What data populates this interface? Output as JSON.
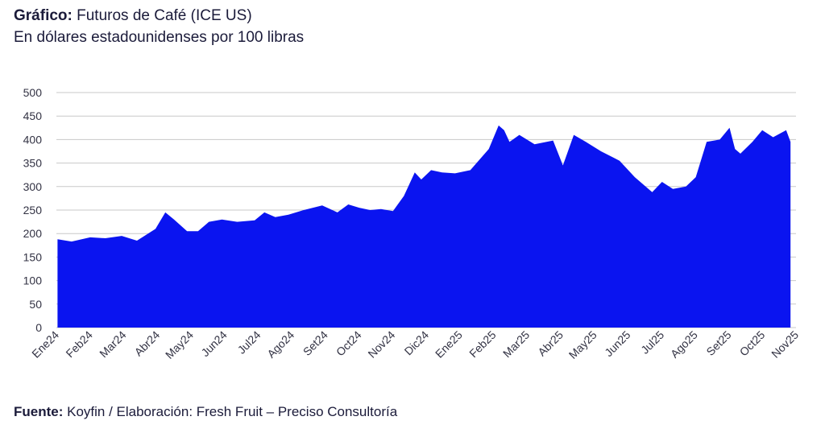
{
  "title": {
    "bold": "Gráfico:",
    "text": " Futuros de Café  (ICE US)",
    "subtitle": "En dólares estadounidenses por 100 libras"
  },
  "source": {
    "bold": "Fuente:",
    "text": " Koyfin / Elaboración: Fresh Fruit – Preciso Consultoría"
  },
  "colors": {
    "area": "#0a14f0",
    "grid": "#c8c8c8",
    "text": "#333344"
  },
  "chart_data": {
    "type": "area",
    "title": "Gráfico: Futuros de Café  (ICE US)",
    "subtitle": "En dólares estadounidenses por 100 libras",
    "ylim": [
      0,
      500
    ],
    "yticks": [
      0,
      50,
      100,
      150,
      200,
      250,
      300,
      350,
      400,
      450,
      500
    ],
    "grid": true,
    "xticks": [
      "Ene24",
      "Feb24",
      "Mar24",
      "Abr24",
      "May24",
      "Jun24",
      "Jul24",
      "Ago24",
      "Set24",
      "Oct24",
      "Nov24",
      "Dic24",
      "Ene25",
      "Feb25",
      "Mar25",
      "Abr25",
      "May25",
      "Jun25",
      "Jul25",
      "Ago25",
      "Set25",
      "Oct25",
      "Nov25"
    ],
    "x": [
      "2024-01-02",
      "2024-01-15",
      "2024-02-01",
      "2024-02-15",
      "2024-03-01",
      "2024-03-15",
      "2024-04-01",
      "2024-04-10",
      "2024-04-18",
      "2024-04-30",
      "2024-05-10",
      "2024-05-20",
      "2024-06-01",
      "2024-06-15",
      "2024-07-01",
      "2024-07-10",
      "2024-07-20",
      "2024-08-01",
      "2024-08-15",
      "2024-09-01",
      "2024-09-15",
      "2024-09-25",
      "2024-10-05",
      "2024-10-15",
      "2024-10-25",
      "2024-11-05",
      "2024-11-15",
      "2024-11-25",
      "2024-12-01",
      "2024-12-10",
      "2024-12-20",
      "2025-01-01",
      "2025-01-15",
      "2025-02-01",
      "2025-02-10",
      "2025-02-15",
      "2025-02-20",
      "2025-03-01",
      "2025-03-15",
      "2025-04-01",
      "2025-04-10",
      "2025-04-20",
      "2025-05-01",
      "2025-05-15",
      "2025-06-01",
      "2025-06-15",
      "2025-07-01",
      "2025-07-10",
      "2025-07-20",
      "2025-08-01",
      "2025-08-10",
      "2025-08-20",
      "2025-09-01",
      "2025-09-10",
      "2025-09-15",
      "2025-09-20",
      "2025-10-01",
      "2025-10-10",
      "2025-10-20",
      "2025-11-01",
      "2025-11-05"
    ],
    "series": [
      {
        "values": [
          188,
          183,
          192,
          190,
          195,
          185,
          210,
          245,
          230,
          205,
          205,
          225,
          230,
          225,
          228,
          245,
          235,
          240,
          250,
          260,
          245,
          262,
          255,
          250,
          252,
          248,
          280,
          330,
          315,
          335,
          330,
          328,
          335,
          380,
          430,
          420,
          395,
          410,
          390,
          398,
          345,
          410,
          395,
          375,
          355,
          320,
          288,
          310,
          295,
          300,
          320,
          395,
          400,
          425,
          380,
          370,
          395,
          420,
          405,
          420,
          395
        ]
      }
    ]
  }
}
